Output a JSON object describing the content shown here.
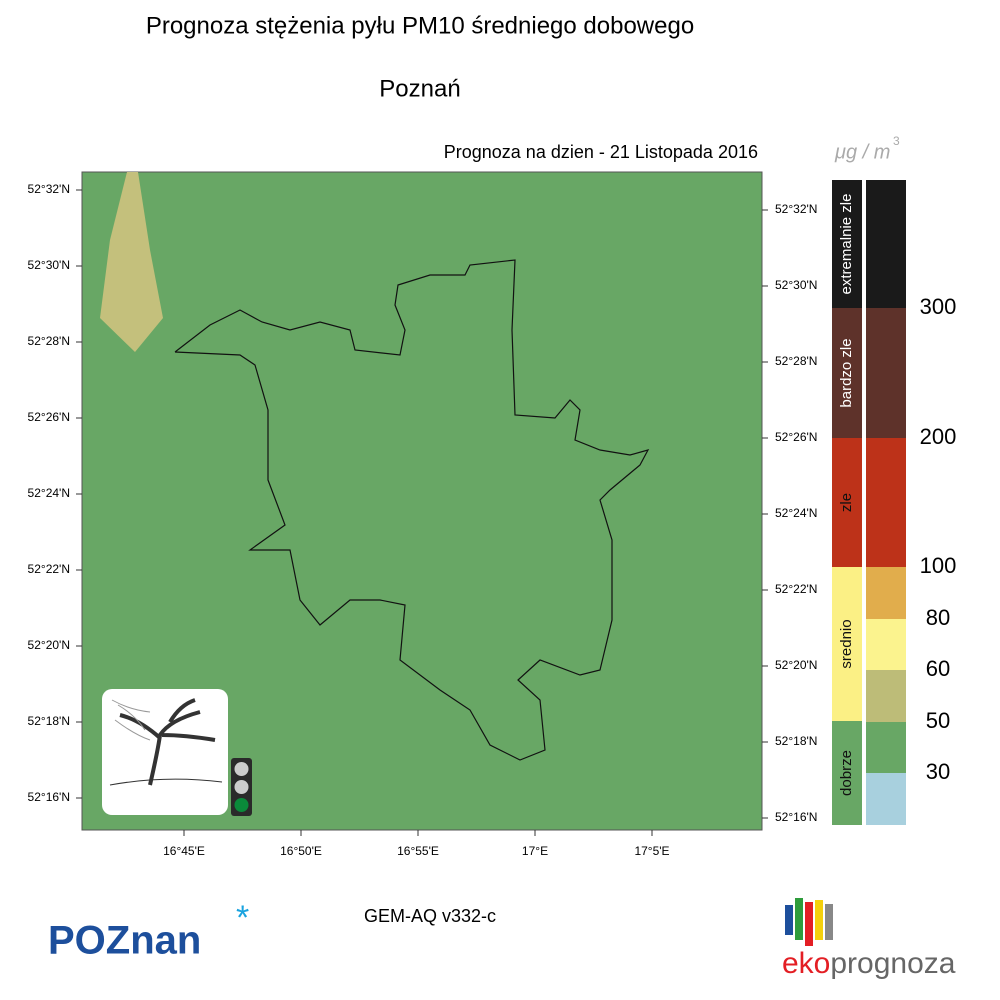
{
  "header": {
    "title": "Prognoza stężenia pyłu PM10 średniego dobowego",
    "city": "Poznań",
    "date": "Prognoza na dzien -  21 Listopada 2016"
  },
  "map": {
    "lat_labels_left": [
      "52°32'N",
      "52°30'N",
      "52°28'N",
      "52°26'N",
      "52°24'N",
      "52°22'N",
      "52°20'N",
      "52°18'N",
      "52°16'N"
    ],
    "lat_labels_right": [
      "52°32'N",
      "52°30'N",
      "52°28'N",
      "52°26'N",
      "52°24'N",
      "52°22'N",
      "52°20'N",
      "52°18'N",
      "52°16'N"
    ],
    "lon_labels": [
      "16°45'E",
      "16°50'E",
      "16°55'E",
      "17°E",
      "17°5'E"
    ]
  },
  "legend": {
    "unit": "μg / m",
    "unit_exp": "3",
    "categories": [
      "extremalnie zle",
      "bardzo zle",
      "zle",
      "srednio",
      "dobrze"
    ],
    "thresholds": [
      300,
      200,
      100,
      80,
      60,
      50,
      30
    ]
  },
  "footer": {
    "model": "GEM-AQ v332-c",
    "logo_left": "POZnan",
    "logo_right_a": "eko",
    "logo_right_b": "prognoza"
  }
}
